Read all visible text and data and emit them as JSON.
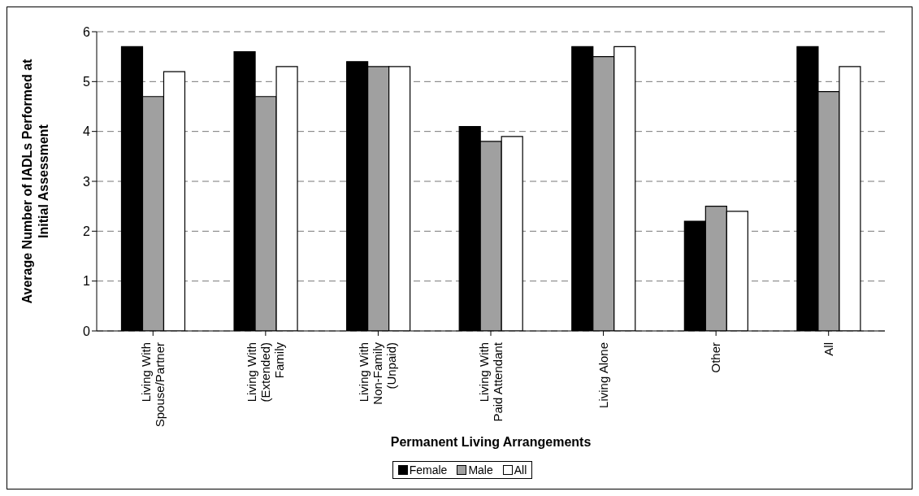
{
  "chart_data": {
    "type": "bar",
    "xlabel": "Permanent Living Arrangements",
    "ylabel": "Average Number of IADLs Performed at\nInitial Assessment",
    "categories": [
      "Living With\nSpouse/Partner",
      "Living With\n(Extended)\nFamily",
      "Living With\nNon-Family\n(Unpaid)",
      "Living With\nPaid Attendant",
      "Living Alone",
      "Other",
      "All"
    ],
    "series": [
      {
        "name": "Female",
        "color": "#000000",
        "values": [
          5.7,
          5.6,
          5.4,
          4.1,
          5.7,
          2.2,
          5.7
        ]
      },
      {
        "name": "Male",
        "color": "#a0a0a0",
        "values": [
          4.7,
          4.7,
          5.3,
          3.8,
          5.5,
          2.5,
          4.8
        ]
      },
      {
        "name": "All",
        "color": "#ffffff",
        "values": [
          5.2,
          5.3,
          5.3,
          3.9,
          5.7,
          2.4,
          5.3
        ]
      }
    ],
    "ylim": [
      0,
      6
    ],
    "yticks": [
      0,
      1,
      2,
      3,
      4,
      5,
      6
    ],
    "grid": "y",
    "legend": "bottom"
  }
}
